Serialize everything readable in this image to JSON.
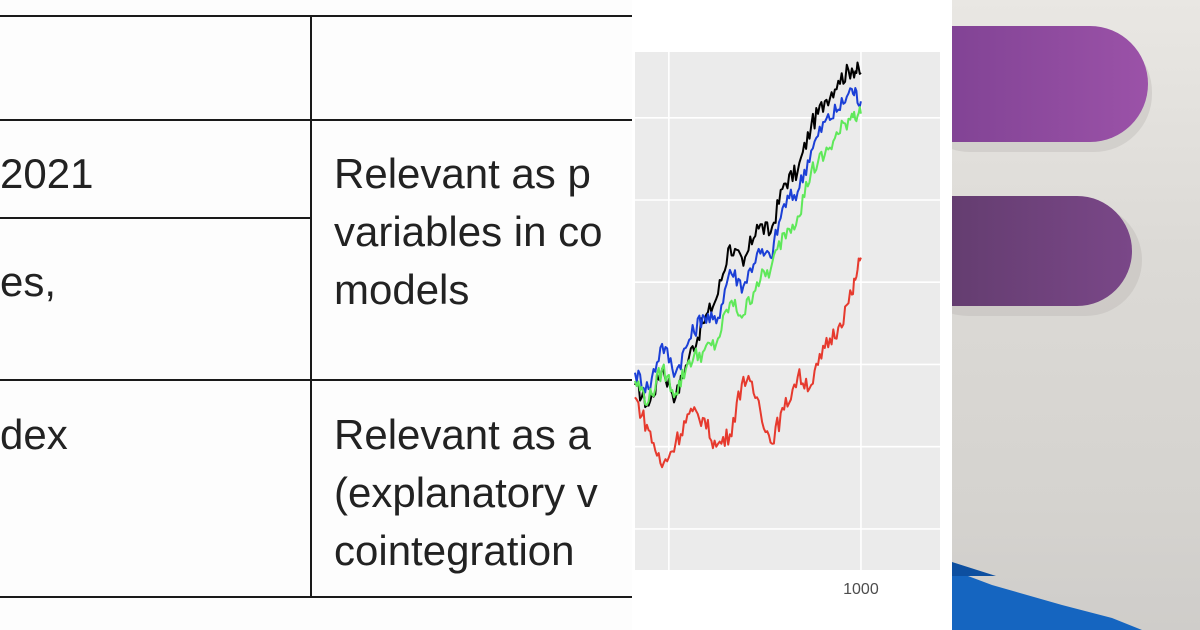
{
  "table": {
    "rows": [
      {
        "left": "2021",
        "right": "Relevant as p\nvariables in co\nmodels"
      },
      {
        "left": "es,"
      },
      {
        "left": "dex",
        "right": "Relevant as a\n(explanatory v\ncointegration"
      }
    ]
  },
  "chart_data": {
    "type": "line",
    "x_tick_labels": [
      "1000"
    ],
    "xlim": [
      0,
      1350
    ],
    "ylim": [
      -1,
      11.6
    ],
    "x": [
      0,
      60,
      120,
      180,
      240,
      300,
      360,
      420,
      480,
      540,
      600,
      660,
      720,
      780,
      840,
      900,
      960,
      1000
    ],
    "series": [
      {
        "name": "black",
        "color": "#000000",
        "values": [
          3.5,
          3.0,
          3.9,
          3.2,
          4.2,
          5.0,
          5.6,
          6.9,
          6.4,
          7.4,
          7.2,
          8.4,
          8.7,
          9.8,
          10.4,
          10.9,
          11.2,
          11.1
        ]
      },
      {
        "name": "blue",
        "color": "#1b3fd6",
        "values": [
          3.8,
          3.4,
          4.5,
          3.8,
          4.6,
          5.2,
          5.0,
          6.3,
          5.9,
          6.7,
          6.6,
          7.9,
          8.2,
          9.2,
          9.9,
          10.2,
          10.7,
          10.4
        ]
      },
      {
        "name": "green",
        "color": "#5fe85a",
        "values": [
          3.6,
          3.1,
          3.9,
          3.3,
          4.1,
          4.3,
          4.5,
          5.5,
          5.2,
          6.0,
          6.3,
          7.2,
          7.6,
          8.7,
          9.1,
          9.6,
          10.1,
          10.1
        ]
      },
      {
        "name": "red",
        "color": "#e63a2e",
        "values": [
          3.2,
          2.4,
          1.5,
          2.1,
          2.8,
          2.7,
          2.0,
          2.3,
          3.7,
          3.2,
          2.1,
          2.9,
          3.7,
          3.5,
          4.4,
          4.9,
          5.7,
          6.6
        ]
      }
    ],
    "grid": true
  },
  "photo": {
    "icon": "stacked-bars-logo-icon",
    "bar_color": "#8c4a9c",
    "base_color": "#1565c0"
  }
}
